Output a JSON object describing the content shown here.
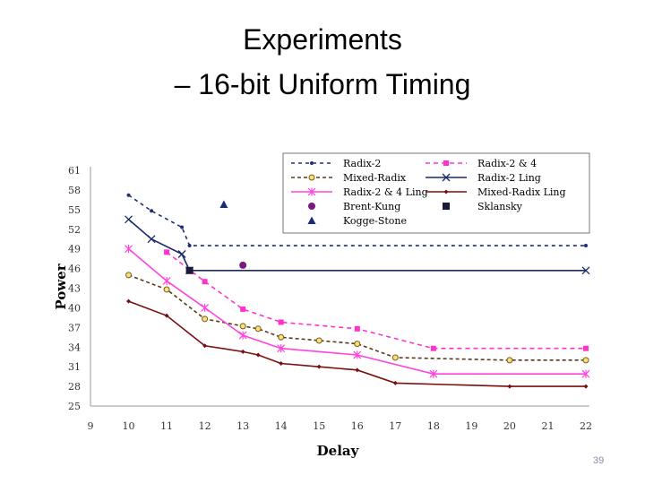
{
  "slide": {
    "title_line1": "Experiments",
    "title_line2": "– 16-bit Uniform Timing",
    "page_number": "39"
  },
  "chart_data": {
    "type": "line",
    "xlabel": "Delay",
    "ylabel": "Power",
    "xlim": [
      9,
      22
    ],
    "ylim": [
      25,
      61
    ],
    "xticks": [
      9,
      10,
      11,
      12,
      13,
      14,
      15,
      16,
      17,
      18,
      19,
      20,
      21,
      22
    ],
    "yticks": [
      25,
      28,
      31,
      34,
      37,
      40,
      43,
      46,
      49,
      52,
      55,
      58,
      61
    ],
    "grid": false,
    "legend_position": "top",
    "series": [
      {
        "name": "Radix-2",
        "color": "#1f2f7a",
        "dash": "4,4",
        "marker": "dot",
        "points": [
          [
            10,
            57.2
          ],
          [
            10.6,
            54.8
          ],
          [
            11.4,
            52.3
          ],
          [
            11.6,
            49.5
          ],
          [
            22,
            49.5
          ]
        ]
      },
      {
        "name": "Radix-2 & 4",
        "color": "#ff33cc",
        "dash": "5,4",
        "marker": "square",
        "points": [
          [
            11,
            48.5
          ],
          [
            12,
            44.0
          ],
          [
            13,
            39.8
          ],
          [
            14,
            37.8
          ],
          [
            16,
            36.8
          ],
          [
            18,
            33.8
          ],
          [
            22,
            33.8
          ]
        ]
      },
      {
        "name": "Mixed-Radix",
        "color": "#5a3a1a",
        "dash": "4,3",
        "marker": "circle-yellow",
        "points": [
          [
            10,
            45.0
          ],
          [
            11,
            42.8
          ],
          [
            12,
            38.3
          ],
          [
            13,
            37.2
          ],
          [
            13.4,
            36.8
          ],
          [
            14,
            35.5
          ],
          [
            15,
            35.0
          ],
          [
            16,
            34.5
          ],
          [
            17,
            32.4
          ],
          [
            20,
            32.0
          ],
          [
            22,
            32.0
          ]
        ]
      },
      {
        "name": "Radix-2 Ling",
        "color": "#1a2a6e",
        "dash": "",
        "marker": "x",
        "points": [
          [
            10,
            53.5
          ],
          [
            10.6,
            50.5
          ],
          [
            11.4,
            48.2
          ],
          [
            11.6,
            45.7
          ],
          [
            22,
            45.7
          ]
        ]
      },
      {
        "name": "Radix-2 & 4 Ling",
        "color": "#ff44dd",
        "dash": "",
        "marker": "star",
        "points": [
          [
            10,
            49.0
          ],
          [
            11,
            44.1
          ],
          [
            12,
            40.0
          ],
          [
            13,
            35.8
          ],
          [
            14,
            33.8
          ],
          [
            16,
            32.8
          ],
          [
            18,
            29.9
          ],
          [
            22,
            29.9
          ]
        ]
      },
      {
        "name": "Mixed-Radix Ling",
        "color": "#7a0f0f",
        "dash": "",
        "marker": "diamond",
        "points": [
          [
            10,
            41.0
          ],
          [
            11,
            38.8
          ],
          [
            12,
            34.2
          ],
          [
            13,
            33.3
          ],
          [
            13.4,
            32.8
          ],
          [
            14,
            31.5
          ],
          [
            15,
            31.0
          ],
          [
            16,
            30.5
          ],
          [
            17,
            28.5
          ],
          [
            20,
            28.0
          ],
          [
            22,
            28.0
          ]
        ]
      },
      {
        "name": "Brent-Kung",
        "color": "#7a1a7a",
        "dash": "none",
        "marker": "big-circle",
        "points": [
          [
            13,
            46.5
          ]
        ]
      },
      {
        "name": "Sklansky",
        "color": "#1a1a3a",
        "dash": "none",
        "marker": "big-square",
        "points": [
          [
            11.6,
            45.7
          ]
        ]
      },
      {
        "name": "Kogge-Stone",
        "color": "#1a2a7a",
        "dash": "none",
        "marker": "triangle",
        "points": [
          [
            12.5,
            55.8
          ]
        ]
      }
    ]
  }
}
